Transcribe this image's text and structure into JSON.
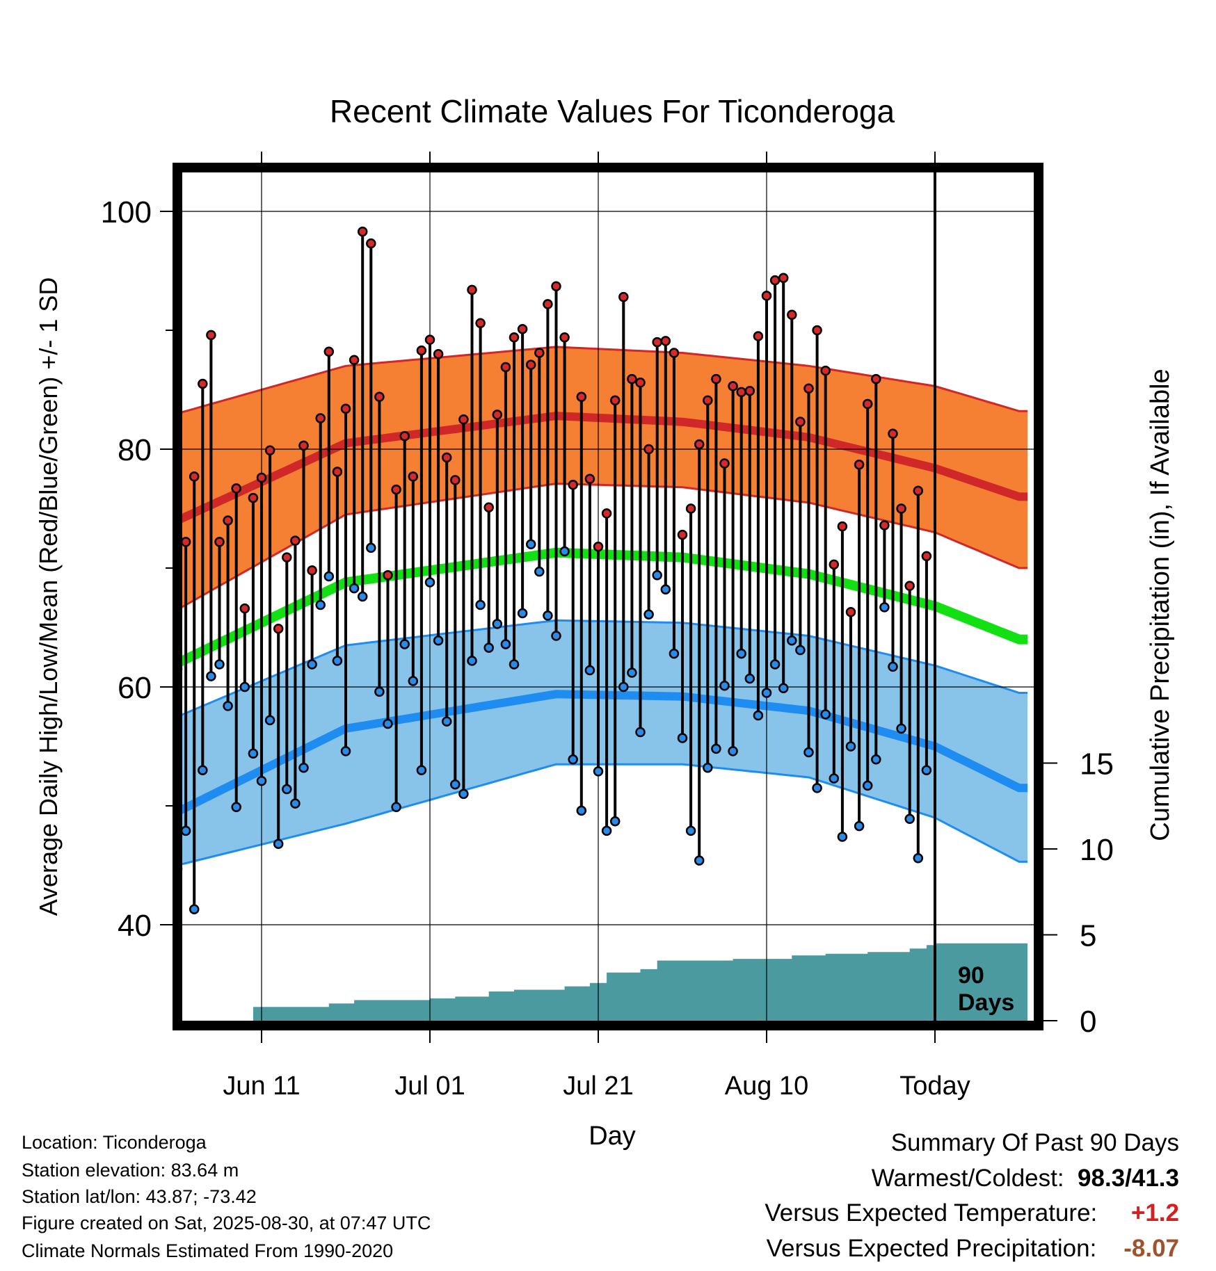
{
  "chart_data": {
    "type": "line",
    "title": "Recent Climate Values For Ticonderoga",
    "xlabel": "Day",
    "ylabel": "Average Daily High/Low/Mean (Red/Blue/Green) +/- 1 SD",
    "y2label": "Cumulative Precipitation (in), If Available",
    "ylim": [
      30,
      105
    ],
    "y2lim": [
      0,
      20
    ],
    "y_ticks": [
      "40",
      "60",
      "80",
      "100"
    ],
    "y2_ticks": [
      "0",
      "5",
      "10",
      "15"
    ],
    "x_ticks": [
      {
        "day": 10,
        "label": "Jun 11"
      },
      {
        "day": 30,
        "label": "Jul 01"
      },
      {
        "day": 50,
        "label": "Jul 21"
      },
      {
        "day": 70,
        "label": "Aug 10"
      },
      {
        "day": 90,
        "label": "Today"
      }
    ],
    "x_range": [
      0,
      100
    ],
    "window_label": [
      "90",
      "Days"
    ],
    "normals": {
      "days": [
        0,
        20,
        45,
        60,
        75,
        90,
        100
      ],
      "high_mean": [
        74,
        80.5,
        82.8,
        82.3,
        81,
        78.4,
        76
      ],
      "high_upper": [
        83,
        87,
        88.6,
        88.1,
        87,
        85.3,
        83.2
      ],
      "high_lower": [
        66.5,
        74.5,
        77.1,
        76.8,
        75.5,
        73,
        70
      ],
      "mean": [
        62,
        68.8,
        71.3,
        70.9,
        69.5,
        66.8,
        64
      ],
      "low_mean": [
        49.5,
        56.5,
        59.4,
        59.2,
        58,
        55,
        51.5
      ],
      "low_upper": [
        57.5,
        63.5,
        65.6,
        65.4,
        64.3,
        61.8,
        59.5
      ],
      "low_lower": [
        45,
        48.5,
        53.5,
        53.5,
        52.4,
        49,
        45.3
      ]
    },
    "series": [
      {
        "name": "High",
        "values": [
          61.5,
          72.2,
          77.7,
          85.5,
          89.6,
          72.2,
          74,
          76.7,
          66.6,
          75.9,
          77.6,
          79.9,
          64.9,
          70.9,
          72.3,
          80.3,
          69.8,
          82.6,
          88.2,
          78.1,
          83.4,
          87.5,
          98.3,
          97.3,
          84.4,
          69.4,
          76.6,
          81.1,
          77.7,
          88.3,
          89.2,
          88,
          79.3,
          77.4,
          82.5,
          93.4,
          90.6,
          75.1,
          82.9,
          86.9,
          89.4,
          90.1,
          87.1,
          88.1,
          92.2,
          93.7,
          89.4,
          77,
          84.4,
          77.5,
          71.8,
          74.6,
          84.1,
          92.8,
          85.9,
          85.6,
          80,
          89,
          89.1,
          88.1,
          72.8,
          75,
          80.4,
          84.1,
          85.9,
          78.8,
          85.3,
          84.8,
          84.9,
          89.5,
          92.9,
          94.2,
          94.4,
          91.3,
          82.3,
          85.1,
          90,
          86.6,
          70.3,
          73.5,
          66.3,
          78.7,
          83.8,
          85.9,
          73.6,
          81.3,
          75,
          68.5,
          76.5,
          71
        ]
      },
      {
        "name": "Low",
        "values": [
          44.7,
          47.9,
          41.3,
          53,
          60.9,
          61.9,
          58.4,
          49.9,
          60,
          54.4,
          52.1,
          57.2,
          46.8,
          51.4,
          50.2,
          53.2,
          61.9,
          66.9,
          69.3,
          62.2,
          54.6,
          68.3,
          67.6,
          71.7,
          59.6,
          56.9,
          49.9,
          63.6,
          60.5,
          53,
          68.8,
          63.9,
          57.1,
          51.8,
          51,
          62.2,
          66.9,
          63.3,
          65.3,
          63.6,
          61.9,
          66.2,
          72,
          69.7,
          66.0,
          64.3,
          71.4,
          53.9,
          49.6,
          61.4,
          52.9,
          47.9,
          48.7,
          60,
          61.2,
          56.2,
          66.1,
          69.4,
          68.2,
          62.8,
          55.7,
          47.9,
          45.4,
          53.2,
          54.8,
          60.1,
          54.6,
          62.8,
          60.7,
          57.6,
          59.5,
          61.9,
          59.9,
          63.9,
          63.1,
          54.5,
          51.5,
          57.7,
          52.3,
          47.4,
          55,
          48.3,
          51.7,
          53.9,
          66.7,
          61.7,
          56.5,
          48.9,
          45.6,
          53
        ]
      }
    ],
    "precip_cumulative": {
      "days": [
        0,
        8,
        9,
        18,
        21,
        30,
        33,
        37,
        40,
        46,
        49,
        51,
        55,
        57,
        66,
        73,
        77,
        82,
        87,
        89,
        90
      ],
      "values": [
        0,
        0,
        0.8,
        1.0,
        1.2,
        1.3,
        1.4,
        1.7,
        1.8,
        2.0,
        2.2,
        2.8,
        3.0,
        3.5,
        3.6,
        3.8,
        3.9,
        4.0,
        4.2,
        4.4,
        4.5
      ]
    },
    "colors": {
      "high_band": "#f57f32",
      "high_line": "#d02828",
      "low_band": "#88c4ea",
      "low_line": "#1e8cf0",
      "mean_line": "#12e012",
      "precip": "#4a9aa0",
      "high_dot": "#d42a2a",
      "low_dot": "#2a8ae8"
    }
  },
  "info": {
    "location": "Location: Ticonderoga",
    "elevation": "Station elevation: 83.64 m",
    "latlon": "Station lat/lon: 43.87; -73.42",
    "created": "Figure created on Sat, 2025-08-30, at 07:47 UTC",
    "normals": "Climate Normals Estimated From 1990-2020"
  },
  "summary": {
    "heading": "Summary Of Past 90 Days",
    "warm_cold_label": "Warmest/Coldest:",
    "warm_cold_value": "98.3/41.3",
    "temp_label": "Versus Expected Temperature:",
    "temp_value": "+1.2",
    "temp_color": "#d42020",
    "precip_label": "Versus Expected Precipitation:",
    "precip_value": "-8.07",
    "precip_color": "#a0522d"
  }
}
